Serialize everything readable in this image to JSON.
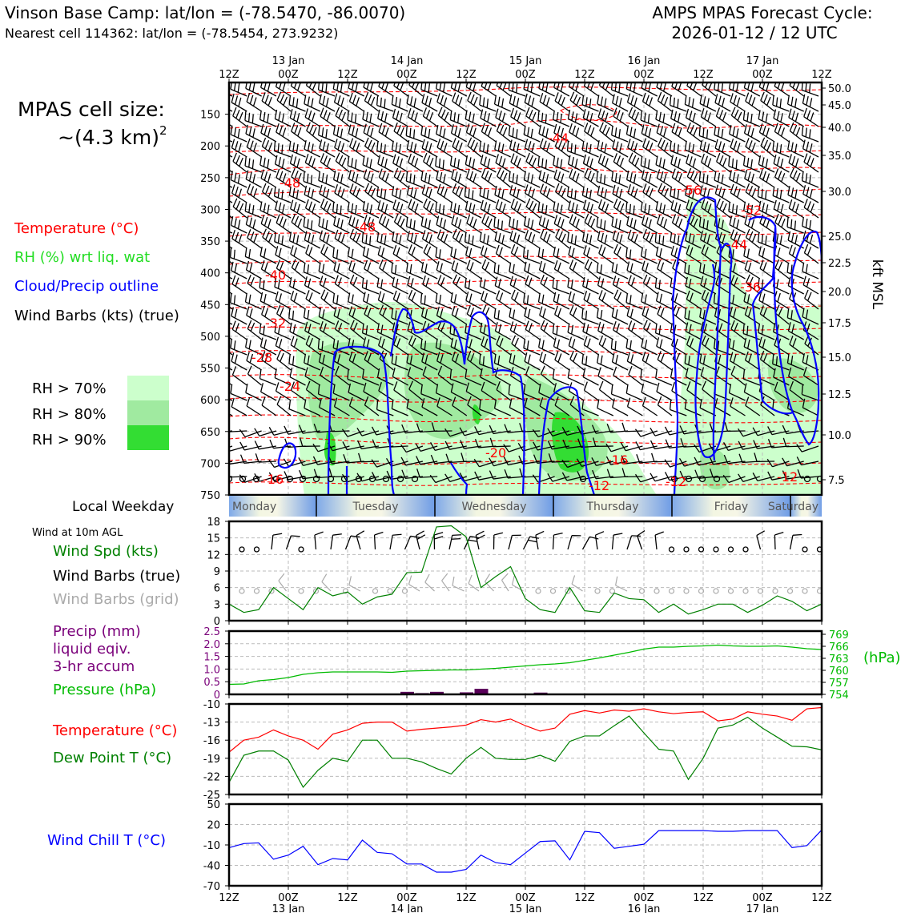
{
  "header": {
    "title_left": "Vinson Base Camp: lat/lon = (-78.5470, -86.0070)",
    "subtitle_left": "Nearest cell 114362: lat/lon = (-78.5454, 273.9232)",
    "title_right_1": "AMPS MPAS Forecast Cycle:",
    "title_right_2": "2026-01-12 / 12 UTC"
  },
  "colors": {
    "temperature": "#ff0000",
    "rh_label": "#22dd22",
    "cloud": "#0000ff",
    "wind_barbs": "#000000",
    "grid_barbs": "#aaaaaa",
    "wind_speed": "#008000",
    "precip": "#7a007a",
    "pressure": "#00bb00",
    "dewpoint": "#008000",
    "windchill": "#0000ff",
    "rh70": "#ccffcc",
    "rh80": "#a0eaa0",
    "rh90": "#33dd33"
  },
  "time_axis": {
    "ticks": [
      "12Z",
      "00Z",
      "12Z",
      "00Z",
      "12Z",
      "00Z",
      "12Z",
      "00Z",
      "12Z",
      "00Z",
      "12Z"
    ],
    "dates": [
      "13 Jan",
      "14 Jan",
      "15 Jan",
      "16 Jan",
      "17 Jan"
    ]
  },
  "weekdays": [
    "Monday",
    "Tuesday",
    "Wednesday",
    "Thursday",
    "Friday",
    "Saturday"
  ],
  "legend": {
    "cell_size_1": "MPAS cell size:",
    "cell_size_2": "~(4.3 km)",
    "cell_size_sup": "2",
    "temperature": "Temperature (°C)",
    "rh": "RH (%) wrt liq. wat",
    "cloud": "Cloud/Precip outline",
    "barbs": "Wind Barbs (kts) (true)",
    "rh70": "RH > 70%",
    "rh80": "RH > 80%",
    "rh90": "RH > 90%",
    "local_weekday": "Local Weekday",
    "wind_10m": "Wind at 10m AGL",
    "wind_spd": "Wind Spd (kts)",
    "wind_barbs_true": "Wind Barbs (true)",
    "wind_barbs_grid": "Wind Barbs (grid)",
    "precip_1": "Precip (mm)",
    "precip_2": "liquid eqiv.",
    "precip_3": "3-hr accum",
    "pressure": "Pressure (hPa)",
    "temp2": "Temperature (°C)",
    "dewpt": "Dew Point T (°C)",
    "windchill": "Wind Chill T (°C)",
    "kft": "kft MSL",
    "hpa": "(hPa)"
  },
  "chart_data": [
    {
      "type": "contour",
      "name": "sounding",
      "y_pressure_ticks": [
        "150",
        "200",
        "250",
        "300",
        "350",
        "400",
        "450",
        "500",
        "550",
        "600",
        "650",
        "700",
        "750"
      ],
      "y_kft_ticks": [
        "50.0",
        "45.0",
        "40.0",
        "35.0",
        "30.0",
        "25.0",
        "22.5",
        "20.0",
        "17.5",
        "15.0",
        "12.5",
        "10.0",
        "7.5"
      ],
      "temp_labels": [
        "-48",
        "-48",
        "-40",
        "-32",
        "-28",
        "-24",
        "-16",
        "-44",
        "-56",
        "-52",
        "-44",
        "-36",
        "-20",
        "-16",
        "-12",
        "-12",
        "-12"
      ]
    },
    {
      "type": "line",
      "name": "wind_speed",
      "ylim": [
        0,
        18
      ],
      "yticks": [
        "0",
        "3",
        "6",
        "9",
        "12",
        "15",
        "18"
      ],
      "values": [
        3,
        1.5,
        2,
        6,
        4,
        2,
        6,
        4.5,
        5.2,
        3,
        4.3,
        4.8,
        8.7,
        8.8,
        17,
        17.2,
        15.2,
        6,
        8,
        9.8,
        4,
        2,
        1.5,
        6,
        1.8,
        1.5,
        5,
        4,
        3.8,
        1.5,
        3,
        1.2,
        2,
        3,
        3,
        1.5,
        2.8,
        4.5,
        3.5,
        1.8,
        3
      ]
    },
    {
      "type": "line+bar",
      "name": "precip_pressure",
      "precip_yticks": [
        "0",
        "0.5",
        "1.0",
        "1.5",
        "2.0",
        "2.5"
      ],
      "pressure_yticks": [
        "754",
        "757",
        "760",
        "763",
        "766",
        "769"
      ],
      "pressure": [
        756.5,
        756.6,
        757.4,
        757.7,
        758.2,
        759.0,
        759.4,
        759.6,
        759.6,
        759.6,
        759.6,
        759.5,
        759.8,
        759.9,
        760.0,
        760.1,
        760.1,
        760.3,
        760.5,
        760.8,
        761.1,
        761.4,
        761.6,
        761.9,
        762.5,
        763.1,
        763.8,
        764.5,
        765.3,
        765.8,
        765.8,
        766.0,
        766.1,
        766.3,
        766.1,
        766.0,
        766.0,
        766.1,
        765.8,
        765.4,
        765.2
      ],
      "precip": [
        0,
        0,
        0,
        0,
        0,
        0,
        0,
        0,
        0,
        0,
        0,
        0,
        0.1,
        0.05,
        0.1,
        0,
        0.08,
        0.22,
        0,
        0,
        0,
        0.07,
        0,
        0,
        0,
        0,
        0,
        0,
        0,
        0,
        0,
        0,
        0,
        0,
        0,
        0,
        0,
        0,
        0,
        0,
        0
      ]
    },
    {
      "type": "line",
      "name": "temp_dewpoint",
      "ylim": [
        -25,
        -10
      ],
      "yticks": [
        "-10",
        "-13",
        "-16",
        "-19",
        "-22",
        "-25"
      ],
      "series": [
        {
          "name": "Temperature (°C)",
          "values": [
            -18,
            -16,
            -15.5,
            -14.3,
            -15.3,
            -16,
            -17.5,
            -15,
            -14.3,
            -13.2,
            -13,
            -13,
            -14.5,
            -14.2,
            -14,
            -13.8,
            -13.5,
            -12.6,
            -13,
            -12.5,
            -13.6,
            -14.5,
            -14,
            -11.7,
            -11.1,
            -11.5,
            -11,
            -11.2,
            -10.8,
            -11.3,
            -11.6,
            -11.4,
            -11.3,
            -12.8,
            -12.5,
            -11.3,
            -11.7,
            -12,
            -12.7,
            -10.8,
            -10.6
          ]
        },
        {
          "name": "Dew Point T (°C)",
          "values": [
            -23,
            -18.5,
            -17.8,
            -17.8,
            -19.3,
            -23.8,
            -21,
            -19,
            -19.5,
            -16,
            -16,
            -19,
            -19,
            -19.6,
            -20.7,
            -21.6,
            -19,
            -17.2,
            -19,
            -19.2,
            -19.2,
            -18.5,
            -19.5,
            -16.2,
            -15.3,
            -15.3,
            -13.6,
            -12,
            -14.8,
            -17.5,
            -17.8,
            -22.5,
            -19,
            -14,
            -13.5,
            -12.2,
            -14,
            -15.5,
            -17,
            -17.1,
            -17.6
          ]
        }
      ]
    },
    {
      "type": "line",
      "name": "wind_chill",
      "ylim": [
        -70,
        50
      ],
      "yticks": [
        "50",
        "20",
        "-10",
        "-40",
        "-70"
      ],
      "values": [
        -14,
        -8,
        -7,
        -31,
        -25,
        -12,
        -39,
        -30,
        -32,
        -3,
        -21,
        -23,
        -38,
        -38,
        -50,
        -50,
        -46,
        -25,
        -36,
        -39,
        -22,
        -5,
        -4,
        -32,
        10,
        8,
        -15,
        -12,
        -9,
        11,
        11,
        11,
        11,
        10,
        10,
        11,
        11,
        11,
        -14,
        -11,
        12
      ]
    }
  ]
}
